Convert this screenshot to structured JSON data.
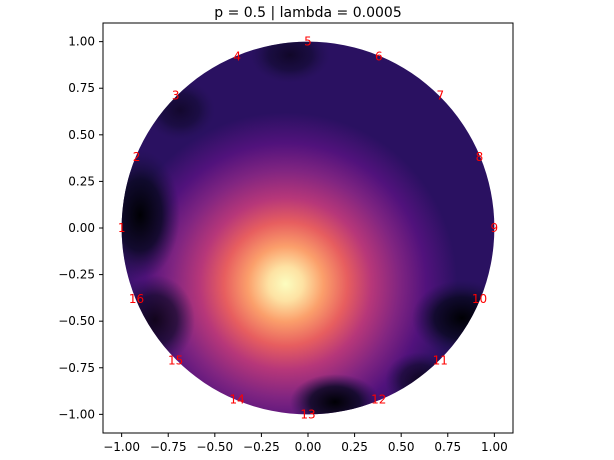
{
  "chart_data": {
    "type": "heatmap",
    "title": "p = 0.5 | lambda = 0.0005",
    "xlabel": "",
    "ylabel": "",
    "xlim": [
      -1.1,
      1.1
    ],
    "ylim": [
      -1.1,
      1.1
    ],
    "x_ticks": [
      "−1.00",
      "−0.75",
      "−0.50",
      "−0.25",
      "0.00",
      "0.25",
      "0.50",
      "0.75",
      "1.00"
    ],
    "y_ticks": [
      "1.00",
      "0.75",
      "0.50",
      "0.25",
      "0.00",
      "−0.25",
      "−0.50",
      "−0.75",
      "−1.00"
    ],
    "x_tick_values": [
      -1.0,
      -0.75,
      -0.5,
      -0.25,
      0.0,
      0.25,
      0.5,
      0.75,
      1.0
    ],
    "y_tick_values": [
      1.0,
      0.75,
      0.5,
      0.25,
      0.0,
      -0.25,
      -0.5,
      -0.75,
      -1.0
    ],
    "grid": false,
    "colormap": "magma",
    "domain": "unit circle",
    "peak": {
      "x": -0.12,
      "y": -0.3
    },
    "electrodes": [
      {
        "label": "1",
        "x": -1.0,
        "y": 0.0
      },
      {
        "label": "2",
        "x": -0.92,
        "y": 0.38
      },
      {
        "label": "3",
        "x": -0.71,
        "y": 0.71
      },
      {
        "label": "4",
        "x": -0.38,
        "y": 0.92
      },
      {
        "label": "5",
        "x": 0.0,
        "y": 1.0
      },
      {
        "label": "6",
        "x": 0.38,
        "y": 0.92
      },
      {
        "label": "7",
        "x": 0.71,
        "y": 0.71
      },
      {
        "label": "8",
        "x": 0.92,
        "y": 0.38
      },
      {
        "label": "9",
        "x": 1.0,
        "y": 0.0
      },
      {
        "label": "10",
        "x": 0.92,
        "y": -0.38
      },
      {
        "label": "11",
        "x": 0.71,
        "y": -0.71
      },
      {
        "label": "12",
        "x": 0.38,
        "y": -0.92
      },
      {
        "label": "13",
        "x": 0.0,
        "y": -1.0
      },
      {
        "label": "14",
        "x": -0.38,
        "y": -0.92
      },
      {
        "label": "15",
        "x": -0.71,
        "y": -0.71
      },
      {
        "label": "16",
        "x": -0.92,
        "y": -0.38
      }
    ],
    "colors": {
      "background": "#ffffff",
      "axes": "#000000",
      "electrode_label": "#ff0000"
    }
  }
}
